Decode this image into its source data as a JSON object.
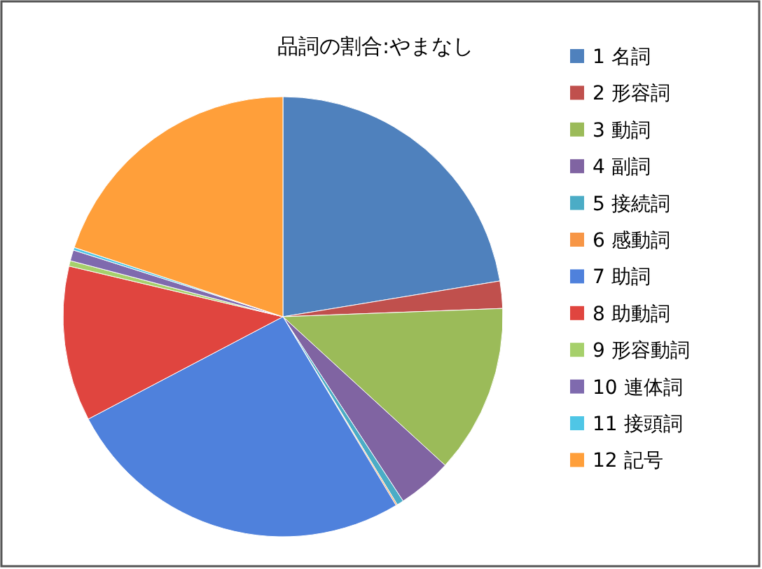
{
  "chart_data": {
    "type": "pie",
    "title": "品詞の割合:やまなし",
    "categories": [
      "1 名詞",
      "2 形容詞",
      "3 動詞",
      "4 副詞",
      "5 接続詞",
      "6 感動詞",
      "7 助詞",
      "8 助動詞",
      "9 形容動詞",
      "10 連体詞",
      "11 接頭詞",
      "12 記号"
    ],
    "values": [
      22.4,
      2,
      12.4,
      4,
      0.5,
      0.1,
      25.9,
      11.4,
      0.4,
      0.8,
      0.2,
      19.9
    ],
    "colors": [
      "#4f81bd",
      "#c0504d",
      "#9bbb59",
      "#8064a2",
      "#4bacc6",
      "#f79646",
      "#4f81dc",
      "#e0453f",
      "#a6d06b",
      "#7f6aae",
      "#4fc6e6",
      "#ff9f3a"
    ],
    "legend": "right"
  }
}
